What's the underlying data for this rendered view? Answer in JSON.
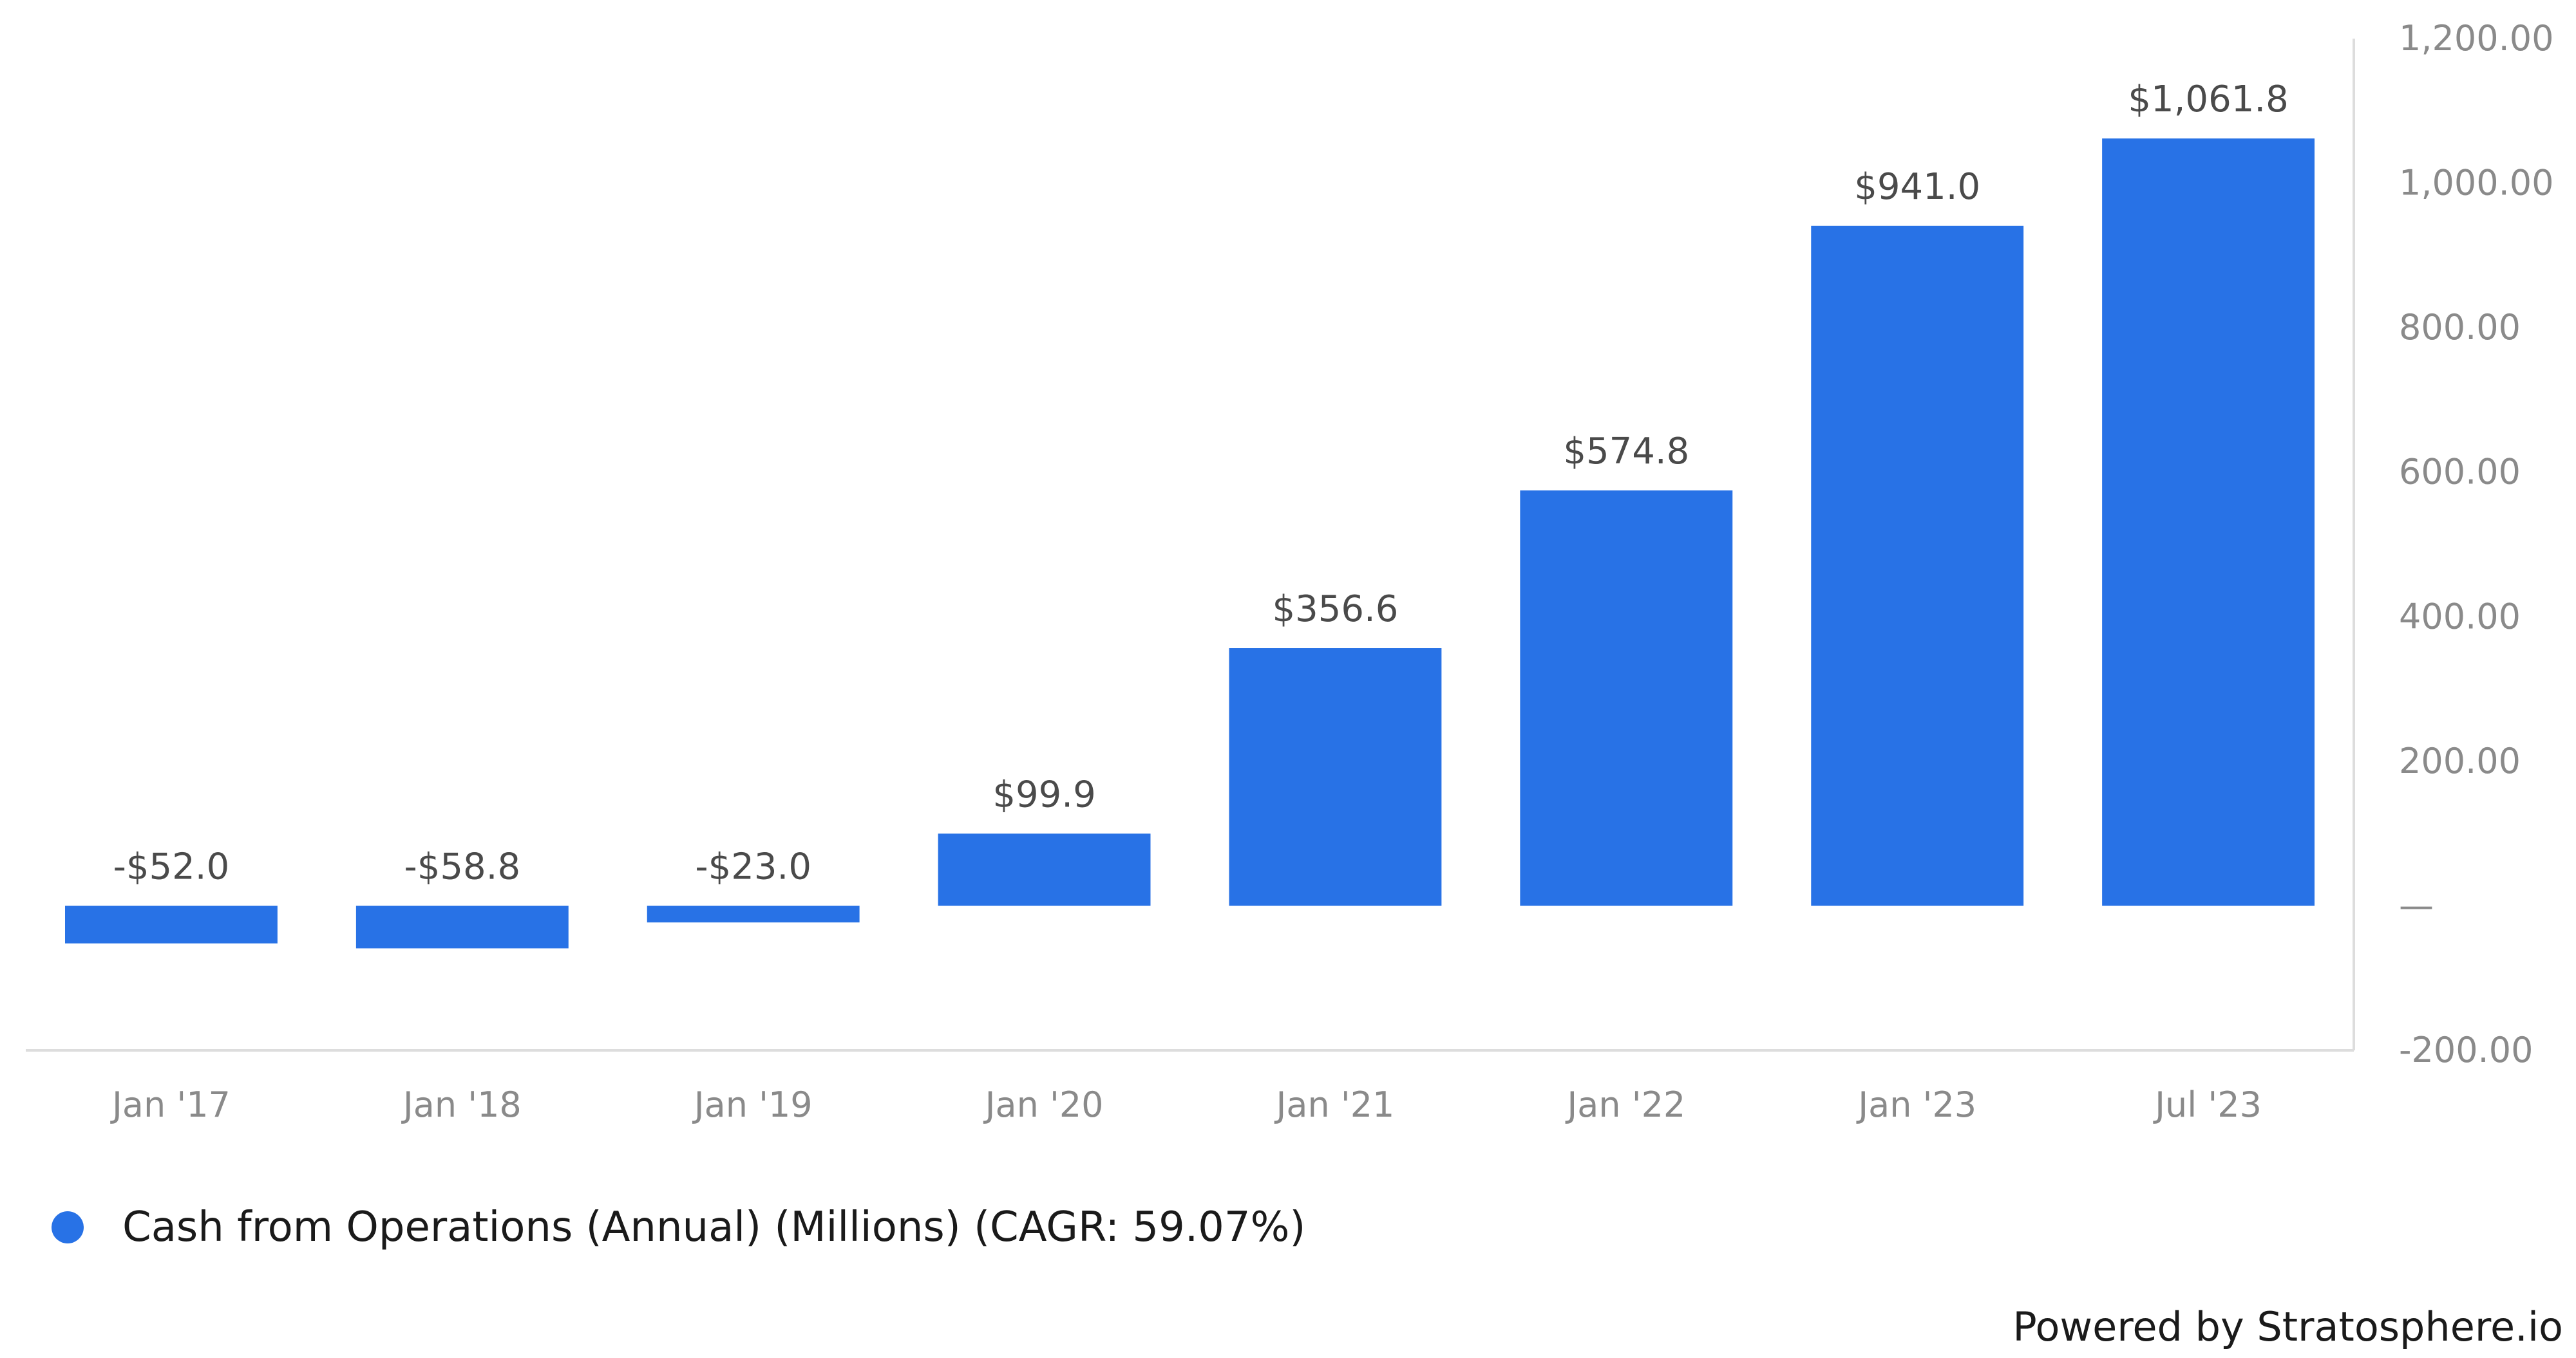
{
  "chart_data": {
    "type": "bar",
    "categories": [
      "Jan '17",
      "Jan '18",
      "Jan '19",
      "Jan '20",
      "Jan '21",
      "Jan '22",
      "Jan '23",
      "Jul '23"
    ],
    "series": [
      {
        "name": "Cash from Operations (Annual) (Millions) (CAGR: 59.07%)",
        "values": [
          -52.0,
          -58.8,
          -23.0,
          99.9,
          356.6,
          574.8,
          941.0,
          1061.8
        ],
        "data_labels": [
          "-$52.0",
          "-$58.8",
          "-$23.0",
          "$99.9",
          "$356.6",
          "$574.8",
          "$941.0",
          "$1,061.8"
        ],
        "color": "#2872e6"
      }
    ],
    "ylim": [
      -200,
      1200
    ],
    "yticks": [
      1200,
      1000,
      800,
      600,
      400,
      200,
      0,
      -200
    ],
    "ytick_labels": [
      "1,200.00",
      "1,000.00",
      "800.00",
      "600.00",
      "400.00",
      "200.00",
      "—",
      "-200.00"
    ],
    "y_axis_position": "right",
    "grid": false,
    "legend_position": "bottom-left"
  },
  "legend": {
    "label": "Cash from Operations (Annual) (Millions) (CAGR: 59.07%)",
    "color": "#2872e6"
  },
  "footer": {
    "text": "Powered by Stratosphere.io"
  }
}
